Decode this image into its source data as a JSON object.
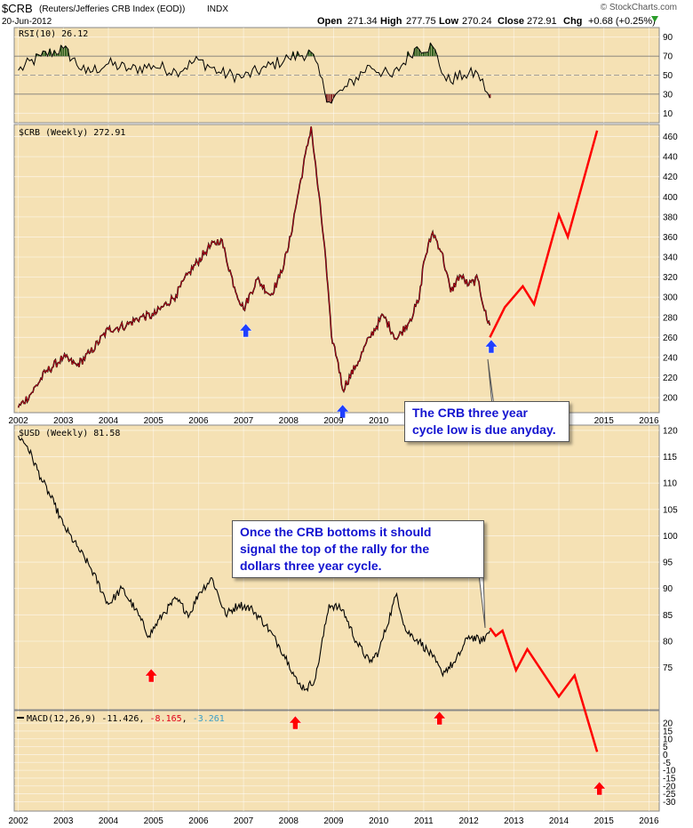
{
  "header": {
    "symbol": "$CRB",
    "name": "(Reuters/Jefferies CRB Index (EOD))",
    "exchange": "INDX",
    "date": "20-Jun-2012",
    "open_label": "Open",
    "open": "271.34",
    "high_label": "High",
    "high": "277.75",
    "low_label": "Low",
    "low": "270.24",
    "close_label": "Close",
    "close": "272.91",
    "chg_label": "Chg",
    "chg": "+0.68 (+0.25%)",
    "watermark": "© StockCharts.com"
  },
  "colors": {
    "panel_bg": "#f5e1b4",
    "price_line": "#000000",
    "crb_highlight": "#e0001a",
    "forecast": "#ff0000",
    "up_arrow_crb": "#1f3fff",
    "up_arrow_usd": "#ff0000",
    "rsi_overbought_fill": "#2e5e1e",
    "rsi_oversold_fill": "#8b2a2a",
    "macd_histogram": "#3a78c8",
    "callout_text": "#1313d0"
  },
  "chart_data": [
    {
      "type": "line",
      "panel": "rsi",
      "label": "RSI(10) 26.12",
      "ylim": [
        0,
        100
      ],
      "ticks": [
        10,
        30,
        50,
        70,
        90
      ],
      "reference_lines": [
        30,
        50,
        70
      ],
      "x": [
        2002.0,
        2002.5,
        2003.0,
        2003.5,
        2004.0,
        2004.5,
        2005.0,
        2005.5,
        2006.0,
        2006.5,
        2007.0,
        2007.5,
        2008.0,
        2008.5,
        2008.9,
        2009.3,
        2009.8,
        2010.3,
        2010.8,
        2011.2,
        2011.5,
        2011.9,
        2012.2,
        2012.47
      ],
      "values": [
        55,
        70,
        78,
        52,
        62,
        56,
        60,
        54,
        66,
        52,
        48,
        58,
        68,
        74,
        22,
        38,
        60,
        48,
        78,
        80,
        44,
        50,
        52,
        26
      ]
    },
    {
      "type": "line",
      "panel": "crb",
      "label": "$CRB (Weekly) 272.91",
      "ylim": [
        185,
        472
      ],
      "ticks": [
        200,
        220,
        240,
        260,
        280,
        300,
        320,
        340,
        360,
        380,
        400,
        420,
        440,
        460
      ],
      "x": [
        2002.0,
        2002.3,
        2002.6,
        2003.0,
        2003.3,
        2003.6,
        2004.0,
        2004.4,
        2004.7,
        2005.0,
        2005.5,
        2005.8,
        2006.2,
        2006.5,
        2006.8,
        2007.0,
        2007.3,
        2007.6,
        2007.8,
        2008.0,
        2008.2,
        2008.5,
        2008.8,
        2008.95,
        2009.1,
        2009.2,
        2009.5,
        2009.8,
        2010.1,
        2010.4,
        2010.7,
        2010.9,
        2011.0,
        2011.2,
        2011.4,
        2011.6,
        2011.8,
        2012.0,
        2012.2,
        2012.4,
        2012.47
      ],
      "values": [
        190,
        205,
        225,
        240,
        232,
        245,
        268,
        272,
        280,
        282,
        302,
        325,
        348,
        358,
        310,
        288,
        318,
        302,
        320,
        350,
        400,
        470,
        350,
        262,
        235,
        208,
        232,
        260,
        282,
        258,
        278,
        298,
        335,
        365,
        345,
        305,
        322,
        312,
        318,
        278,
        272
      ]
    },
    {
      "type": "line",
      "panel": "crb_forecast",
      "x": [
        2012.47,
        2012.8,
        2013.2,
        2013.45,
        2014.0,
        2014.2,
        2014.85
      ],
      "values": [
        260,
        290,
        311,
        293,
        382,
        360,
        466
      ]
    },
    {
      "type": "line",
      "panel": "usd",
      "label": "$USD (Weekly) 81.58",
      "ylim": [
        67,
        121
      ],
      "ticks": [
        75,
        80,
        85,
        90,
        95,
        100,
        105,
        110,
        115,
        120
      ],
      "x": [
        2002.0,
        2002.2,
        2002.5,
        2002.8,
        2003.0,
        2003.3,
        2003.6,
        2004.0,
        2004.3,
        2004.6,
        2004.9,
        2005.2,
        2005.5,
        2005.8,
        2006.0,
        2006.3,
        2006.6,
        2006.9,
        2007.2,
        2007.5,
        2007.8,
        2008.0,
        2008.2,
        2008.4,
        2008.6,
        2008.9,
        2009.2,
        2009.5,
        2009.8,
        2010.0,
        2010.4,
        2010.6,
        2010.9,
        2011.2,
        2011.4,
        2011.7,
        2012.0,
        2012.3,
        2012.47
      ],
      "values": [
        119,
        117,
        111,
        106,
        102,
        98,
        94,
        87,
        90,
        86,
        81,
        85,
        88,
        85,
        89,
        92,
        85,
        87,
        86,
        83,
        79,
        76,
        72,
        71,
        73,
        87,
        86,
        80,
        76,
        78,
        89,
        82,
        80,
        77,
        74,
        76,
        81,
        80,
        82
      ]
    },
    {
      "type": "line",
      "panel": "usd_forecast",
      "x": [
        2012.47,
        2012.6,
        2012.75,
        2013.05,
        2013.3,
        2014.0,
        2014.35,
        2014.85
      ],
      "values": [
        82.5,
        81,
        82,
        74.5,
        78.5,
        69.5,
        73.5,
        59
      ]
    },
    {
      "type": "line",
      "panel": "macd",
      "label": "MACD(12,26,9)",
      "macd": "-11.426",
      "signal": "-8.165",
      "histogram": "-3.261",
      "ylim": [
        -36,
        28
      ],
      "ticks": [
        -30,
        -25,
        -20,
        -15,
        -10,
        -5,
        0,
        5,
        10,
        15,
        20
      ]
    }
  ],
  "x_axis": {
    "years": [
      2002,
      2003,
      2004,
      2005,
      2006,
      2007,
      2008,
      2009,
      2010,
      2011,
      2012,
      2013,
      2014,
      2015,
      2016
    ],
    "top_labels": [
      "2002",
      "2003",
      "2004",
      "2005",
      "2006",
      "2007",
      "2008",
      "2009",
      "2010",
      "2011",
      "2012",
      "2013",
      "2014",
      "2015",
      "2016"
    ],
    "bottom_labels": [
      "2002",
      "2003",
      "2004",
      "2005",
      "2006",
      "2007",
      "2008",
      "2009",
      "2010",
      "2011",
      "2012",
      "2013",
      "2014",
      "2015",
      "2016"
    ]
  },
  "arrows": {
    "crb_up": [
      2007.05,
      2009.2,
      2012.5
    ],
    "usd_up": [
      2004.95,
      2008.15,
      2011.35,
      2014.9
    ]
  },
  "annotations": {
    "crb_callout": "The CRB three year cycle low is due anyday.",
    "crb_callout_l1": "The CRB three year",
    "crb_callout_l2": "cycle low is due anyday.",
    "usd_callout_l1": "Once the CRB bottoms it should",
    "usd_callout_l2": "signal the top of the rally for the",
    "usd_callout_l3": "dollars three year cycle."
  }
}
